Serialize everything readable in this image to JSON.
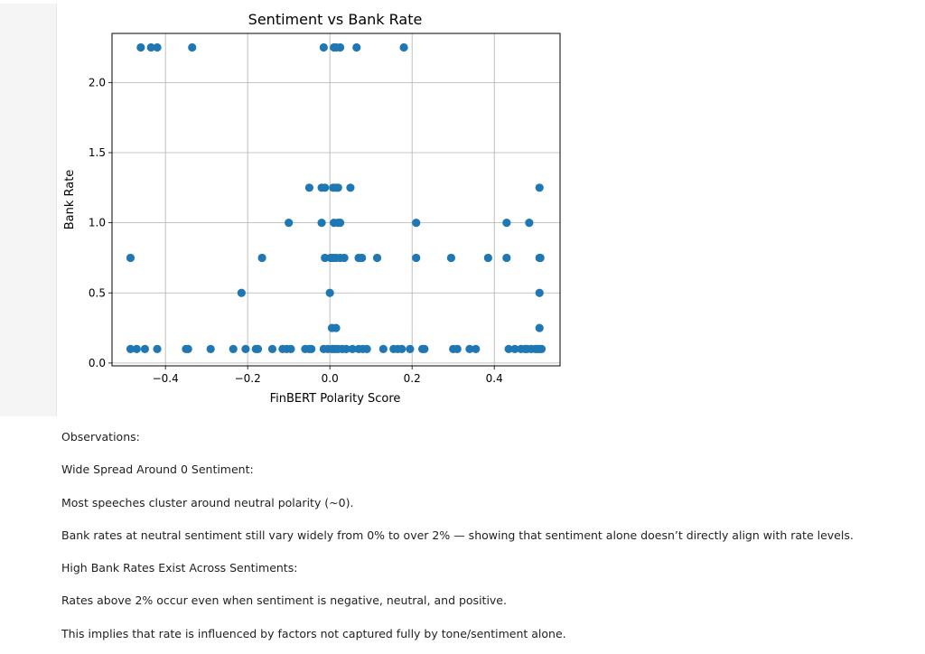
{
  "chart_data": {
    "type": "scatter",
    "title": "Sentiment vs Bank Rate",
    "xlabel": "FinBERT Polarity Score",
    "ylabel": "Bank Rate",
    "xlim": [
      -0.53,
      0.56
    ],
    "ylim": [
      -0.02,
      2.35
    ],
    "xticks": [
      -0.4,
      -0.2,
      0.0,
      0.2,
      0.4
    ],
    "xtick_labels": [
      "−0.4",
      "−0.2",
      "0.0",
      "0.2",
      "0.4"
    ],
    "yticks": [
      0.0,
      0.5,
      1.0,
      1.5,
      2.0
    ],
    "ytick_labels": [
      "0.0",
      "0.5",
      "1.0",
      "1.5",
      "2.0"
    ],
    "grid": true,
    "color": "#1f77b4",
    "points": [
      [
        -0.46,
        2.25
      ],
      [
        -0.435,
        2.25
      ],
      [
        -0.42,
        2.25
      ],
      [
        -0.335,
        2.25
      ],
      [
        -0.015,
        2.25
      ],
      [
        0.01,
        2.25
      ],
      [
        0.015,
        2.25
      ],
      [
        0.025,
        2.25
      ],
      [
        0.065,
        2.25
      ],
      [
        0.18,
        2.25
      ],
      [
        -0.05,
        1.25
      ],
      [
        -0.02,
        1.25
      ],
      [
        -0.012,
        1.25
      ],
      [
        0.008,
        1.25
      ],
      [
        0.015,
        1.25
      ],
      [
        0.02,
        1.25
      ],
      [
        0.05,
        1.25
      ],
      [
        0.51,
        1.25
      ],
      [
        -0.1,
        1.0
      ],
      [
        -0.02,
        1.0
      ],
      [
        0.01,
        1.0
      ],
      [
        0.02,
        1.0
      ],
      [
        0.025,
        1.0
      ],
      [
        0.21,
        1.0
      ],
      [
        0.43,
        1.0
      ],
      [
        0.485,
        1.0
      ],
      [
        -0.485,
        0.75
      ],
      [
        -0.165,
        0.75
      ],
      [
        -0.012,
        0.75
      ],
      [
        0.002,
        0.75
      ],
      [
        0.008,
        0.75
      ],
      [
        0.015,
        0.75
      ],
      [
        0.025,
        0.75
      ],
      [
        0.035,
        0.75
      ],
      [
        0.07,
        0.75
      ],
      [
        0.078,
        0.75
      ],
      [
        0.115,
        0.75
      ],
      [
        0.21,
        0.75
      ],
      [
        0.295,
        0.75
      ],
      [
        0.385,
        0.75
      ],
      [
        0.43,
        0.75
      ],
      [
        0.51,
        0.75
      ],
      [
        0.512,
        0.75
      ],
      [
        -0.215,
        0.5
      ],
      [
        0.0,
        0.5
      ],
      [
        0.51,
        0.5
      ],
      [
        0.005,
        0.25
      ],
      [
        0.015,
        0.25
      ],
      [
        0.51,
        0.25
      ],
      [
        -0.485,
        0.1
      ],
      [
        -0.47,
        0.1
      ],
      [
        -0.45,
        0.1
      ],
      [
        -0.42,
        0.1
      ],
      [
        -0.35,
        0.1
      ],
      [
        -0.345,
        0.1
      ],
      [
        -0.29,
        0.1
      ],
      [
        -0.235,
        0.1
      ],
      [
        -0.205,
        0.1
      ],
      [
        -0.18,
        0.1
      ],
      [
        -0.175,
        0.1
      ],
      [
        -0.14,
        0.1
      ],
      [
        -0.115,
        0.1
      ],
      [
        -0.105,
        0.1
      ],
      [
        -0.095,
        0.1
      ],
      [
        -0.06,
        0.1
      ],
      [
        -0.05,
        0.1
      ],
      [
        -0.045,
        0.1
      ],
      [
        -0.015,
        0.1
      ],
      [
        -0.005,
        0.1
      ],
      [
        0.005,
        0.1
      ],
      [
        0.01,
        0.1
      ],
      [
        0.015,
        0.1
      ],
      [
        0.02,
        0.1
      ],
      [
        0.03,
        0.1
      ],
      [
        0.04,
        0.1
      ],
      [
        0.055,
        0.1
      ],
      [
        0.07,
        0.1
      ],
      [
        0.08,
        0.1
      ],
      [
        0.09,
        0.1
      ],
      [
        0.13,
        0.1
      ],
      [
        0.155,
        0.1
      ],
      [
        0.165,
        0.1
      ],
      [
        0.175,
        0.1
      ],
      [
        0.195,
        0.1
      ],
      [
        0.225,
        0.1
      ],
      [
        0.23,
        0.1
      ],
      [
        0.3,
        0.1
      ],
      [
        0.31,
        0.1
      ],
      [
        0.34,
        0.1
      ],
      [
        0.355,
        0.1
      ],
      [
        0.435,
        0.1
      ],
      [
        0.45,
        0.1
      ],
      [
        0.465,
        0.1
      ],
      [
        0.475,
        0.1
      ],
      [
        0.48,
        0.1
      ],
      [
        0.49,
        0.1
      ],
      [
        0.5,
        0.1
      ],
      [
        0.505,
        0.1
      ],
      [
        0.51,
        0.1
      ],
      [
        0.515,
        0.1
      ]
    ]
  },
  "notes": {
    "heading": "Observations:",
    "point1_title": "Wide Spread Around 0 Sentiment:",
    "point1_a": "Most speeches cluster around neutral polarity (~0).",
    "point1_b": "Bank rates at neutral sentiment still vary widely from 0% to over 2% — showing that sentiment alone doesn’t directly align with rate levels.",
    "point2_title": "High Bank Rates Exist Across Sentiments:",
    "point2_a": "Rates above 2% occur even when sentiment is negative, neutral, and positive.",
    "point2_b": "This implies that rate is influenced by factors not captured fully by tone/sentiment alone."
  }
}
